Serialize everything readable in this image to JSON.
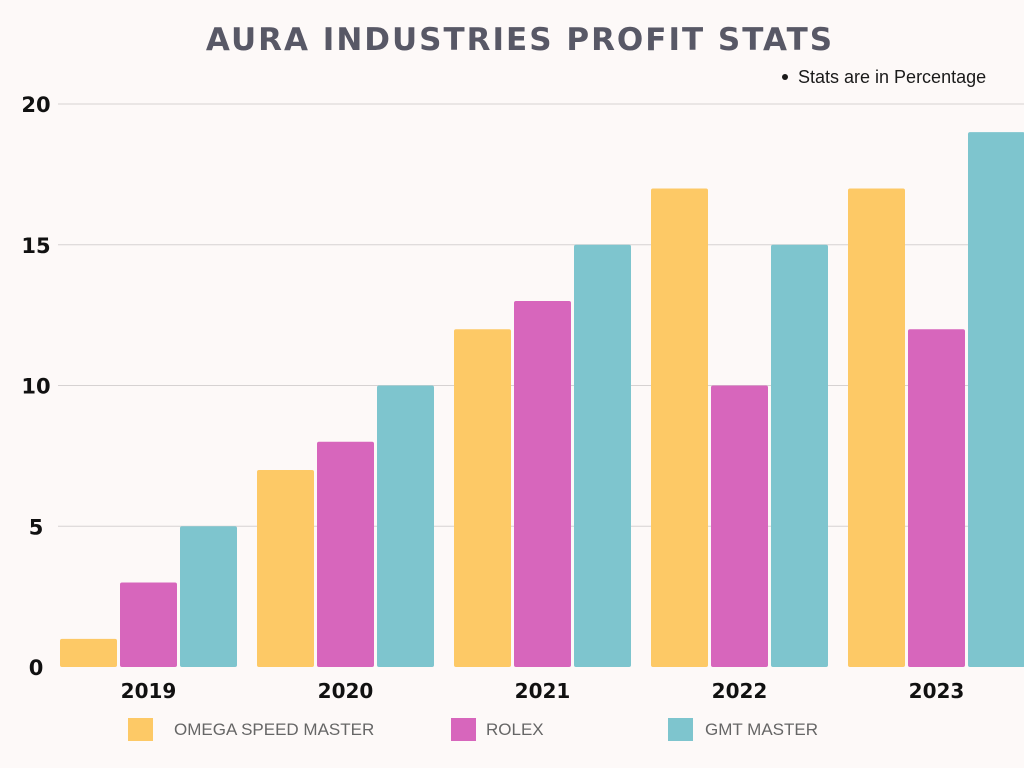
{
  "chart_data": {
    "type": "bar",
    "title": "AURA INDUSTRIES PROFIT STATS",
    "note": "Stats are in Percentage",
    "categories": [
      "2019",
      "2020",
      "2021",
      "2022",
      "2023"
    ],
    "series": [
      {
        "name": "OMEGA SPEED MASTER",
        "color": "#fdc966",
        "values": [
          1,
          7,
          12,
          17,
          17
        ]
      },
      {
        "name": "ROLEX",
        "color": "#d766bc",
        "values": [
          3,
          8,
          13,
          10,
          12
        ]
      },
      {
        "name": "GMT MASTER",
        "color": "#7ec5ce",
        "values": [
          5,
          10,
          15,
          15,
          19
        ]
      }
    ],
    "yticks": [
      "0",
      "5",
      "10",
      "15",
      "20"
    ],
    "ylim": [
      0,
      20
    ],
    "grid": true,
    "legend": "bottom"
  }
}
